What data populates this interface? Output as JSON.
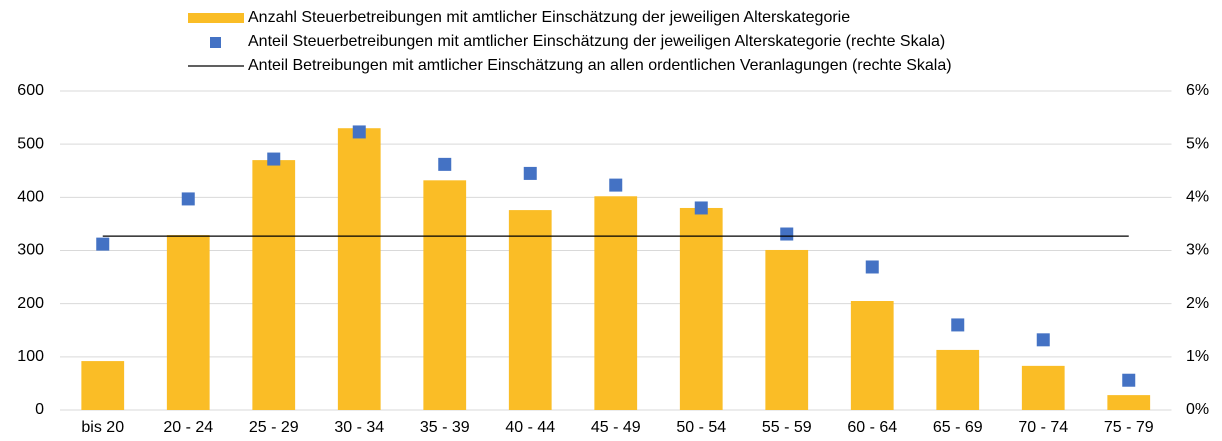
{
  "chart_data": {
    "type": "bar",
    "categories": [
      "bis 20",
      "20 - 24",
      "25 - 29",
      "30 - 34",
      "35 - 39",
      "40 - 44",
      "45 - 49",
      "50 - 54",
      "55 - 59",
      "60 - 64",
      "65 - 69",
      "70 - 74",
      "75 - 79"
    ],
    "series": [
      {
        "name": "Anzahl Steuerbetreibungen mit amtlicher Einschätzung der jeweiligen Alterskategorie",
        "type": "bar",
        "color": "#fabd26",
        "values": [
          92,
          329,
          470,
          530,
          432,
          376,
          402,
          380,
          301,
          205,
          113,
          83,
          28
        ]
      },
      {
        "name": "Anteil Steuerbetreibungen mit amtlicher Einschätzung der jeweiligen Alterskategorie (rechte Skala)",
        "type": "scatter",
        "color": "#4472c4",
        "axis": "y2",
        "values": [
          3.12,
          3.97,
          4.72,
          5.23,
          4.62,
          4.45,
          4.23,
          3.8,
          3.31,
          2.69,
          1.6,
          1.32,
          0.56
        ]
      },
      {
        "name": "Anteil Betreibungen mit amtlicher Einschätzung an allen ordentlichen Veranlagungen (rechte Skala)",
        "type": "line",
        "color": "#000000",
        "axis": "y2",
        "values": [
          3.27,
          3.27,
          3.27,
          3.27,
          3.27,
          3.27,
          3.27,
          3.27,
          3.27,
          3.27,
          3.27,
          3.27,
          3.27
        ]
      }
    ],
    "ylim": [
      0,
      600
    ],
    "yticks": [
      0,
      100,
      200,
      300,
      400,
      500,
      600
    ],
    "y2lim": [
      0,
      6
    ],
    "y2ticks": [
      {
        "value": 0,
        "label": "0%"
      },
      {
        "value": 1,
        "label": "1%"
      },
      {
        "value": 2,
        "label": "2%"
      },
      {
        "value": 3,
        "label": "3%"
      },
      {
        "value": 4,
        "label": "4%"
      },
      {
        "value": 5,
        "label": "5%"
      },
      {
        "value": 6,
        "label": "6%"
      }
    ],
    "grid": true,
    "legend": "top"
  }
}
